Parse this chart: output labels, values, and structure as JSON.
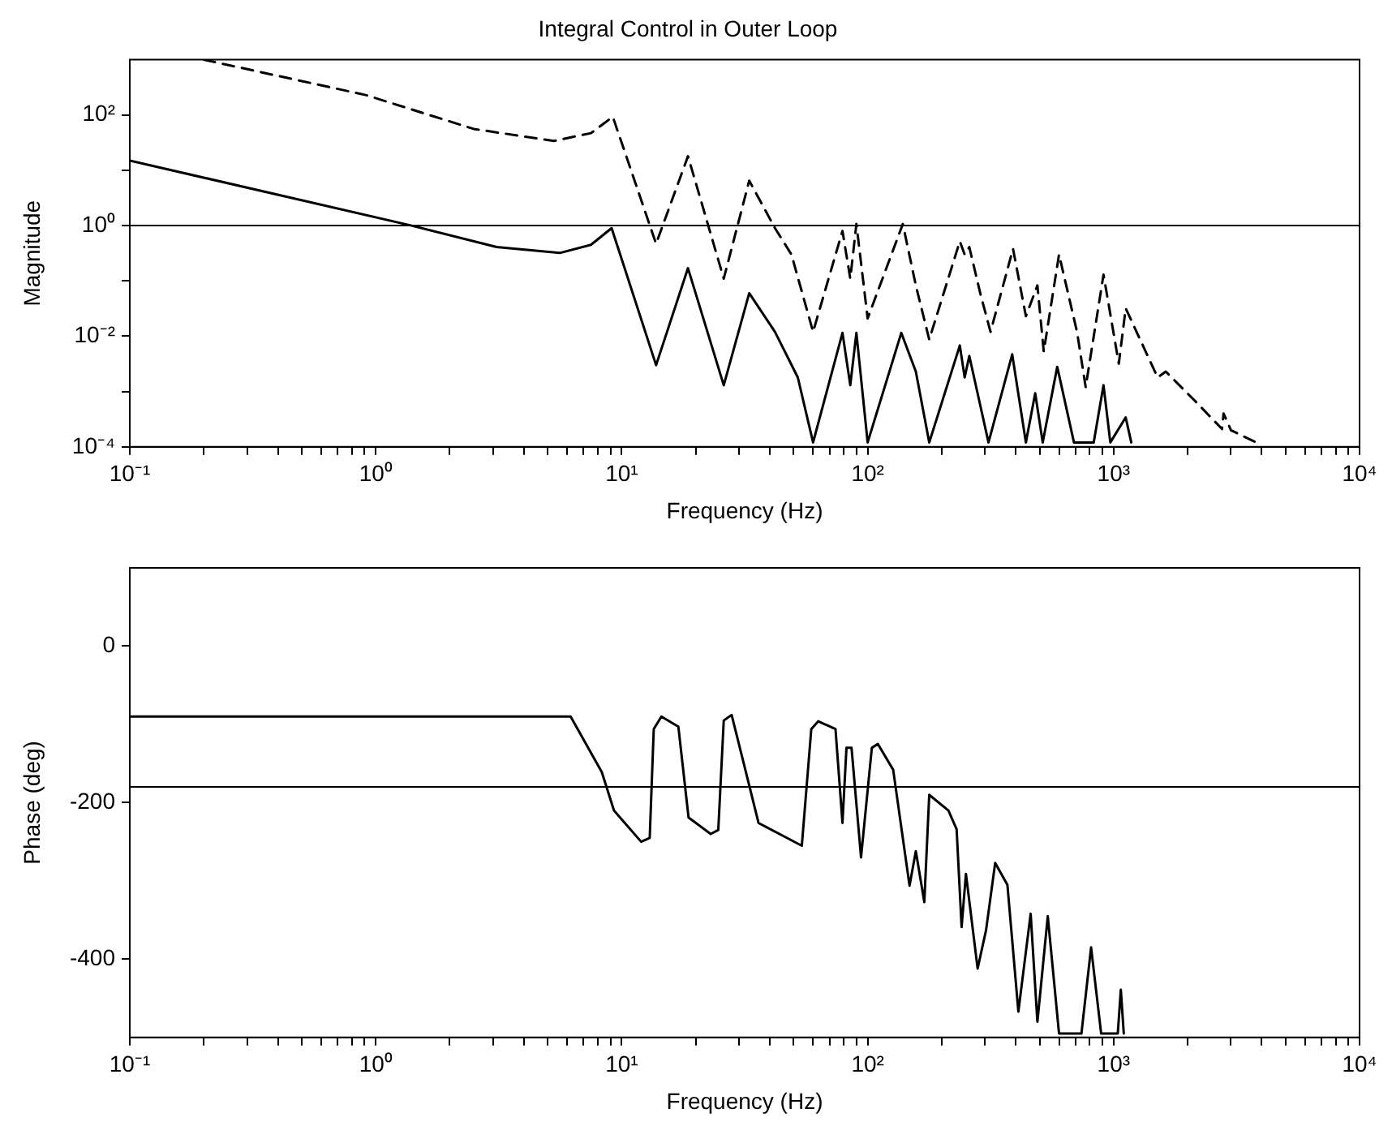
{
  "chart_data": [
    {
      "type": "line",
      "title": "Integral Control in Outer Loop",
      "xlabel": "Frequency (Hz)",
      "ylabel": "Magnitude",
      "log": "xy",
      "xlim": [
        0.1,
        10000
      ],
      "ylim": [
        0.0001,
        1000
      ],
      "xticks": [
        {
          "value": 0.1,
          "label": "10⁻¹"
        },
        {
          "value": 0.2,
          "label": null
        },
        {
          "value": 0.3,
          "label": null
        },
        {
          "value": 0.4,
          "label": null
        },
        {
          "value": 0.5,
          "label": null
        },
        {
          "value": 0.6,
          "label": null
        },
        {
          "value": 0.7,
          "label": null
        },
        {
          "value": 0.8,
          "label": null
        },
        {
          "value": 0.9,
          "label": null
        },
        {
          "value": 1,
          "label": "10⁰"
        },
        {
          "value": 2,
          "label": null
        },
        {
          "value": 3,
          "label": null
        },
        {
          "value": 4,
          "label": null
        },
        {
          "value": 5,
          "label": null
        },
        {
          "value": 6,
          "label": null
        },
        {
          "value": 7,
          "label": null
        },
        {
          "value": 8,
          "label": null
        },
        {
          "value": 9,
          "label": null
        },
        {
          "value": 10,
          "label": "10¹"
        },
        {
          "value": 20,
          "label": null
        },
        {
          "value": 30,
          "label": null
        },
        {
          "value": 40,
          "label": null
        },
        {
          "value": 50,
          "label": null
        },
        {
          "value": 60,
          "label": null
        },
        {
          "value": 70,
          "label": null
        },
        {
          "value": 80,
          "label": null
        },
        {
          "value": 90,
          "label": null
        },
        {
          "value": 100,
          "label": "10²"
        },
        {
          "value": 200,
          "label": null
        },
        {
          "value": 300,
          "label": null
        },
        {
          "value": 400,
          "label": null
        },
        {
          "value": 500,
          "label": null
        },
        {
          "value": 600,
          "label": null
        },
        {
          "value": 700,
          "label": null
        },
        {
          "value": 800,
          "label": null
        },
        {
          "value": 900,
          "label": null
        },
        {
          "value": 1000,
          "label": "10³"
        },
        {
          "value": 2000,
          "label": null
        },
        {
          "value": 3000,
          "label": null
        },
        {
          "value": 4000,
          "label": null
        },
        {
          "value": 5000,
          "label": null
        },
        {
          "value": 6000,
          "label": null
        },
        {
          "value": 7000,
          "label": null
        },
        {
          "value": 8000,
          "label": null
        },
        {
          "value": 9000,
          "label": null
        },
        {
          "value": 10000,
          "label": "10⁴"
        }
      ],
      "yticks": [
        {
          "value": 0.0001,
          "label": "10⁻⁴"
        },
        {
          "value": 0.001,
          "label": null
        },
        {
          "value": 0.01,
          "label": "10⁻²"
        },
        {
          "value": 0.1,
          "label": null
        },
        {
          "value": 1,
          "label": "10⁰"
        },
        {
          "value": 10,
          "label": null
        },
        {
          "value": 100,
          "label": "10²"
        }
      ],
      "ref_lines": [
        {
          "axis": "y",
          "value": 1,
          "color": "#000000"
        }
      ],
      "series": [
        {
          "color": "#000000",
          "line_style": "solid",
          "x": [
            0.1,
            1.4,
            3.1,
            5.6,
            7.5,
            9.1,
            13.8,
            18.6,
            26,
            33,
            42,
            52,
            60,
            79,
            85,
            90,
            100,
            137,
            157,
            178,
            237,
            248,
            259,
            310,
            387,
            440,
            480,
            515,
            590,
            690,
            830,
            910,
            970,
            1120,
            1180
          ],
          "values": [
            15,
            1,
            0.41,
            0.32,
            0.45,
            0.9,
            0.003,
            0.17,
            0.0013,
            0.06,
            0.012,
            0.0018,
            0.00012,
            0.0115,
            0.0013,
            0.0115,
            0.00012,
            0.0115,
            0.0023,
            0.00012,
            0.0068,
            0.0018,
            0.0044,
            0.00012,
            0.0047,
            0.00012,
            0.00093,
            0.00012,
            0.0028,
            0.00012,
            0.00012,
            0.0013,
            0.00012,
            0.00034,
            0.00012
          ]
        },
        {
          "color": "#000000",
          "line_style": "dashed",
          "x": [
            0.2,
            0.91,
            2.5,
            5.3,
            7.5,
            9.2,
            13.8,
            18.6,
            26,
            33,
            42,
            49,
            60,
            79,
            85,
            90,
            100,
            139,
            157,
            178,
            237,
            248,
            259,
            288,
            316,
            390,
            440,
            490,
            520,
            600,
            710,
            770,
            910,
            1050,
            1120,
            1510,
            1630,
            2140,
            2760,
            2800,
            3000,
            3800
          ],
          "values": [
            1000,
            230,
            56,
            34,
            47,
            93,
            0.47,
            18,
            0.11,
            6.5,
            0.9,
            0.3,
            0.012,
            0.8,
            0.11,
            1.07,
            0.021,
            1.07,
            0.083,
            0.0087,
            0.52,
            0.3,
            0.41,
            0.056,
            0.012,
            0.38,
            0.023,
            0.083,
            0.0053,
            0.3,
            0.012,
            0.0012,
            0.13,
            0.0032,
            0.032,
            0.0018,
            0.0023,
            0.00068,
            0.00021,
            0.0004,
            0.0002,
            0.00012
          ]
        }
      ]
    },
    {
      "type": "line",
      "xlabel": "Frequency (Hz)",
      "ylabel": "Phase (deg)",
      "log": "x",
      "xlim": [
        0.1,
        10000
      ],
      "ylim": [
        -500,
        100
      ],
      "xticks": [
        {
          "value": 0.1,
          "label": "10⁻¹"
        },
        {
          "value": 0.2,
          "label": null
        },
        {
          "value": 0.3,
          "label": null
        },
        {
          "value": 0.4,
          "label": null
        },
        {
          "value": 0.5,
          "label": null
        },
        {
          "value": 0.6,
          "label": null
        },
        {
          "value": 0.7,
          "label": null
        },
        {
          "value": 0.8,
          "label": null
        },
        {
          "value": 0.9,
          "label": null
        },
        {
          "value": 1,
          "label": "10⁰"
        },
        {
          "value": 2,
          "label": null
        },
        {
          "value": 3,
          "label": null
        },
        {
          "value": 4,
          "label": null
        },
        {
          "value": 5,
          "label": null
        },
        {
          "value": 6,
          "label": null
        },
        {
          "value": 7,
          "label": null
        },
        {
          "value": 8,
          "label": null
        },
        {
          "value": 9,
          "label": null
        },
        {
          "value": 10,
          "label": "10¹"
        },
        {
          "value": 20,
          "label": null
        },
        {
          "value": 30,
          "label": null
        },
        {
          "value": 40,
          "label": null
        },
        {
          "value": 50,
          "label": null
        },
        {
          "value": 60,
          "label": null
        },
        {
          "value": 70,
          "label": null
        },
        {
          "value": 80,
          "label": null
        },
        {
          "value": 90,
          "label": null
        },
        {
          "value": 100,
          "label": "10²"
        },
        {
          "value": 200,
          "label": null
        },
        {
          "value": 300,
          "label": null
        },
        {
          "value": 400,
          "label": null
        },
        {
          "value": 500,
          "label": null
        },
        {
          "value": 600,
          "label": null
        },
        {
          "value": 700,
          "label": null
        },
        {
          "value": 800,
          "label": null
        },
        {
          "value": 900,
          "label": null
        },
        {
          "value": 1000,
          "label": "10³"
        },
        {
          "value": 2000,
          "label": null
        },
        {
          "value": 3000,
          "label": null
        },
        {
          "value": 4000,
          "label": null
        },
        {
          "value": 5000,
          "label": null
        },
        {
          "value": 6000,
          "label": null
        },
        {
          "value": 7000,
          "label": null
        },
        {
          "value": 8000,
          "label": null
        },
        {
          "value": 9000,
          "label": null
        },
        {
          "value": 10000,
          "label": "10⁴"
        }
      ],
      "yticks": [
        -400,
        -200,
        0
      ],
      "ref_lines": [
        {
          "axis": "y",
          "value": -180,
          "color": "#000000"
        }
      ],
      "series": [
        {
          "color": "#000000",
          "line_style": "solid",
          "x": [
            0.1,
            6.2,
            8.3,
            9.3,
            12,
            13,
            13.5,
            14.5,
            17,
            18.7,
            23,
            24.7,
            26,
            28,
            33,
            36,
            54,
            59,
            63,
            74,
            79,
            82,
            86,
            94,
            104,
            110,
            127,
            148,
            157,
            170,
            178,
            213,
            230,
            241,
            251,
            280,
            303,
            330,
            370,
            410,
            460,
            490,
            540,
            600,
            740,
            810,
            890,
            1040,
            1070,
            1100
          ],
          "values": [
            -90,
            -90,
            -161,
            -210,
            -250,
            -245,
            -106,
            -90,
            -103,
            -219,
            -240,
            -235,
            -95,
            -88,
            -178,
            -226,
            -255,
            -106,
            -96,
            -106,
            -226,
            -130,
            -130,
            -270,
            -130,
            -125,
            -158,
            -306,
            -262,
            -327,
            -190,
            -210,
            -234,
            -359,
            -291,
            -412,
            -363,
            -277,
            -305,
            -467,
            -342,
            -480,
            -345,
            -495,
            -495,
            -385,
            -495,
            -495,
            -439,
            -495
          ]
        }
      ]
    }
  ]
}
